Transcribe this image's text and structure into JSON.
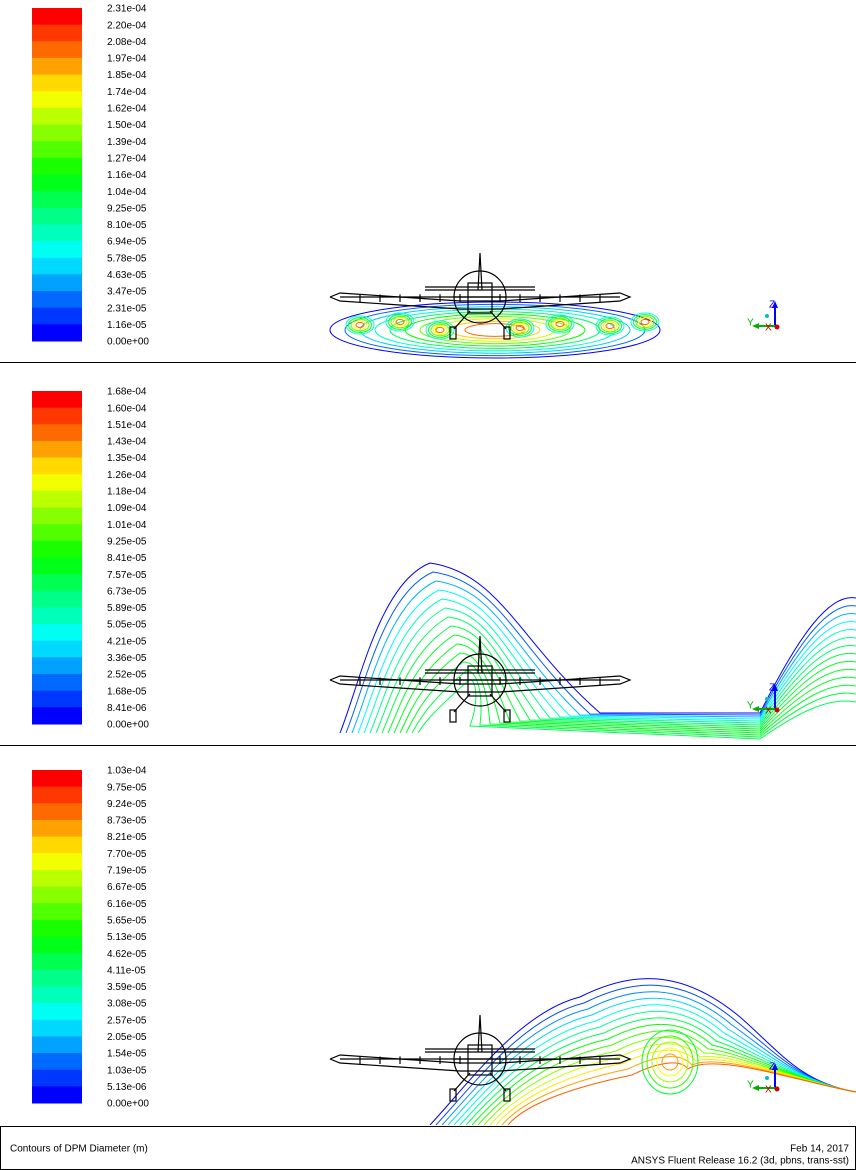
{
  "panels": [
    {
      "legend": [
        "2.31e-04",
        "2.20e-04",
        "2.08e-04",
        "1.97e-04",
        "1.85e-04",
        "1.74e-04",
        "1.62e-04",
        "1.50e-04",
        "1.39e-04",
        "1.27e-04",
        "1.16e-04",
        "1.04e-04",
        "9.25e-05",
        "8.10e-05",
        "6.94e-05",
        "5.78e-05",
        "4.63e-05",
        "3.47e-05",
        "2.31e-05",
        "1.16e-05",
        "0.00e+00"
      ]
    },
    {
      "legend": [
        "1.68e-04",
        "1.60e-04",
        "1.51e-04",
        "1.43e-04",
        "1.35e-04",
        "1.26e-04",
        "1.18e-04",
        "1.09e-04",
        "1.01e-04",
        "9.25e-05",
        "8.41e-05",
        "7.57e-05",
        "6.73e-05",
        "5.89e-05",
        "5.05e-05",
        "4.21e-05",
        "3.36e-05",
        "2.52e-05",
        "1.68e-05",
        "8.41e-06",
        "0.00e+00"
      ]
    },
    {
      "legend": [
        "1.03e-04",
        "9.75e-05",
        "9.24e-05",
        "8.73e-05",
        "8.21e-05",
        "7.70e-05",
        "7.19e-05",
        "6.67e-05",
        "6.16e-05",
        "5.65e-05",
        "5.13e-05",
        "4.62e-05",
        "4.11e-05",
        "3.59e-05",
        "3.08e-05",
        "2.57e-05",
        "2.05e-05",
        "1.54e-05",
        "1.03e-05",
        "5.13e-06",
        "0.00e+00"
      ]
    }
  ],
  "axes": {
    "z": "Z",
    "y": "Y",
    "x": "X"
  },
  "footer": {
    "caption": "Contours of DPM Diameter (m)",
    "date": "Feb 14, 2017",
    "release": "ANSYS Fluent Release 16.2 (3d, pbns, trans-sst)"
  }
}
